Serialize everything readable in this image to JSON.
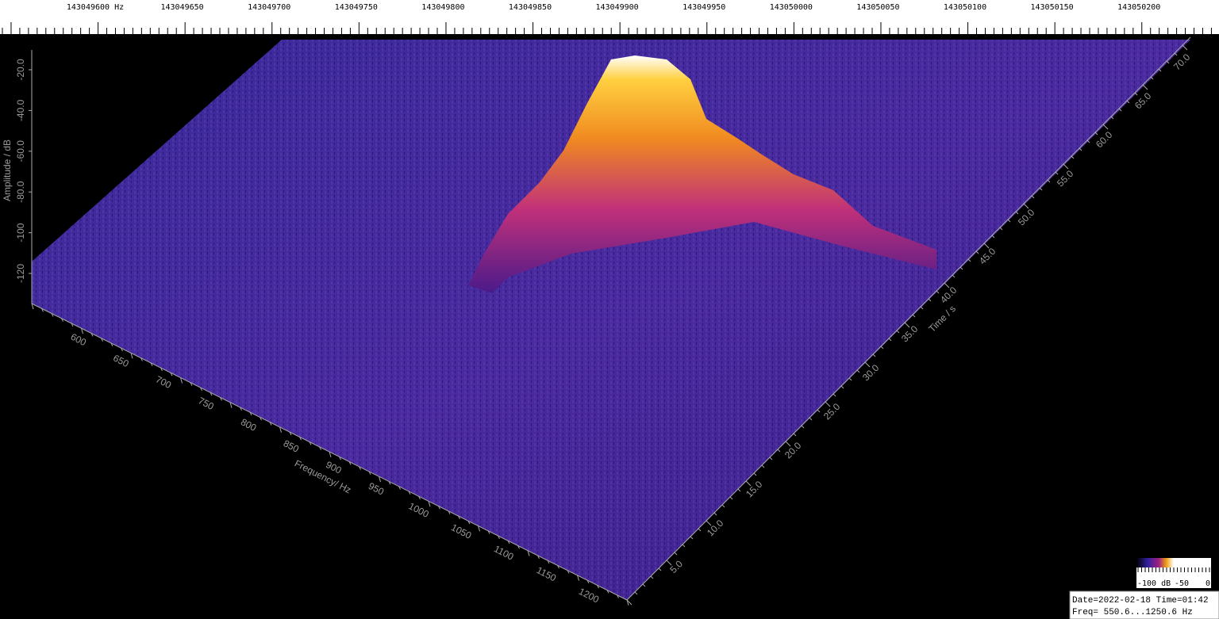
{
  "top_scale": {
    "labels": [
      "143049600 Hz",
      "143049650",
      "143049700",
      "143049750",
      "143049800",
      "143049850",
      "143049900",
      "143049950",
      "143050000",
      "143050050",
      "143050100",
      "143050150",
      "143050200"
    ]
  },
  "amplitude_axis": {
    "label": "Amplitude / dB",
    "ticks": [
      "-20.0",
      "-40.0",
      "-60.0",
      "-80.0",
      "-100",
      "-120"
    ]
  },
  "frequency_axis": {
    "label": "Frequency/ Hz",
    "ticks": [
      "600",
      "650",
      "700",
      "750",
      "800",
      "850",
      "900",
      "950",
      "1000",
      "1050",
      "1100",
      "1150",
      "1200"
    ]
  },
  "time_axis": {
    "label": "Time / s",
    "ticks": [
      "5.0",
      "10.0",
      "15.0",
      "20.0",
      "25.0",
      "30.0",
      "35.0",
      "40.0",
      "45.0",
      "50.0",
      "55.0",
      "60.0",
      "65.0",
      "70.0"
    ]
  },
  "colorbar": {
    "labels": [
      "-100 dB",
      "-50",
      "0"
    ]
  },
  "status": {
    "line1": "Date=2022-02-18 Time=01:42",
    "line2": "Freq= 550.6...1250.6 Hz"
  }
}
